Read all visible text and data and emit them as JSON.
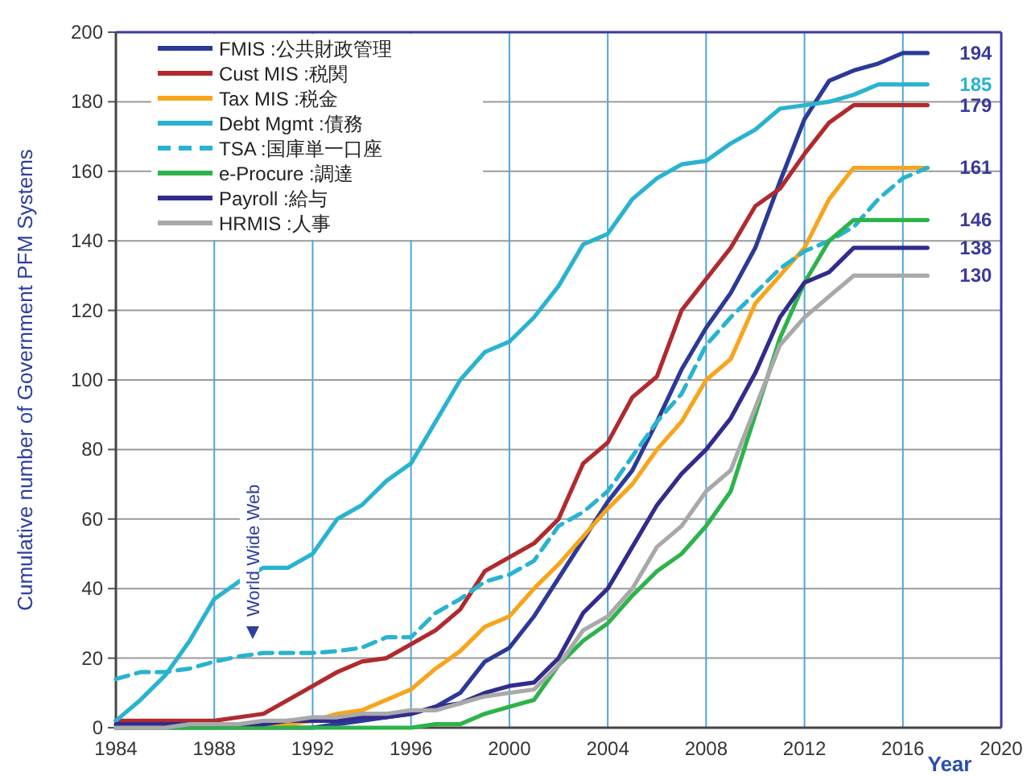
{
  "chart_data": {
    "type": "line",
    "xlabel": "Year",
    "ylabel": "Cumulative number of Government PFM Systems",
    "x": [
      1984,
      1985,
      1986,
      1987,
      1988,
      1989,
      1990,
      1991,
      1992,
      1993,
      1994,
      1995,
      1996,
      1997,
      1998,
      1999,
      2000,
      2001,
      2002,
      2003,
      2004,
      2005,
      2006,
      2007,
      2008,
      2009,
      2010,
      2011,
      2012,
      2013,
      2014,
      2015,
      2016,
      2017
    ],
    "xlim": [
      1984,
      2020
    ],
    "xticks": [
      1984,
      1988,
      1992,
      1996,
      2000,
      2004,
      2008,
      2012,
      2016,
      2020
    ],
    "ylim": [
      0,
      200
    ],
    "yticks": [
      0,
      20,
      40,
      60,
      80,
      100,
      120,
      140,
      160,
      180,
      200
    ],
    "grid": true,
    "legend": "top left",
    "marker": "none",
    "series": [
      {
        "name": "FMIS :公共財政管理",
        "color": "#2b3a97",
        "values": [
          0,
          0,
          0,
          0,
          0,
          0,
          0,
          0,
          0,
          1,
          2,
          3,
          4,
          6,
          10,
          19,
          23,
          32,
          43,
          54,
          65,
          74,
          88,
          103,
          115,
          125,
          138,
          157,
          175,
          186,
          189,
          191,
          194,
          194
        ],
        "value_labels": [
          null,
          null,
          null,
          null,
          null,
          null,
          null,
          null,
          null,
          null,
          null,
          null,
          null,
          null,
          null,
          null,
          null,
          null,
          null,
          null,
          null,
          null,
          null,
          null,
          null,
          null,
          null,
          null,
          null,
          null,
          null,
          null,
          null,
          "194"
        ]
      },
      {
        "name": "Cust MIS :税関",
        "color": "#b02a2e",
        "values": [
          2,
          2,
          2,
          2,
          2,
          3,
          4,
          8,
          12,
          16,
          19,
          20,
          24,
          28,
          34,
          45,
          49,
          53,
          60,
          76,
          82,
          95,
          101,
          120,
          129,
          138,
          150,
          155,
          165,
          174,
          179,
          179,
          179,
          179
        ],
        "value_labels": [
          null,
          null,
          null,
          null,
          null,
          null,
          null,
          null,
          null,
          null,
          null,
          null,
          null,
          null,
          null,
          null,
          null,
          null,
          null,
          null,
          null,
          null,
          null,
          null,
          null,
          null,
          null,
          null,
          null,
          null,
          null,
          null,
          null,
          "179"
        ]
      },
      {
        "name": "Tax MIS :税金",
        "color": "#f7a51c",
        "values": [
          null,
          null,
          null,
          null,
          null,
          0,
          0,
          1,
          2,
          4,
          5,
          8,
          11,
          17,
          22,
          29,
          32,
          40,
          47,
          55,
          63,
          70,
          80,
          88,
          100,
          106,
          122,
          130,
          138,
          152,
          161,
          161,
          161,
          161
        ],
        "value_labels": [
          null,
          null,
          null,
          null,
          null,
          null,
          null,
          null,
          null,
          null,
          null,
          null,
          null,
          null,
          null,
          null,
          null,
          null,
          null,
          null,
          null,
          null,
          null,
          null,
          null,
          null,
          null,
          null,
          null,
          null,
          null,
          null,
          null,
          "161"
        ]
      },
      {
        "name": "Debt Mgmt :債務",
        "color": "#29b3d0",
        "values": [
          2,
          8,
          15,
          25,
          37,
          42,
          46,
          46,
          50,
          60,
          64,
          71,
          76,
          88,
          100,
          108,
          111,
          118,
          127,
          139,
          142,
          152,
          158,
          162,
          163,
          168,
          172,
          178,
          179,
          180,
          182,
          185,
          185,
          185
        ],
        "value_labels": [
          null,
          null,
          null,
          null,
          null,
          null,
          null,
          null,
          null,
          null,
          null,
          null,
          null,
          null,
          null,
          null,
          null,
          null,
          null,
          null,
          null,
          null,
          null,
          null,
          null,
          null,
          null,
          null,
          null,
          null,
          null,
          null,
          null,
          "185"
        ]
      },
      {
        "name": "TSA :国庫単一口座",
        "color": "#29b3d0",
        "line_style": "dashed",
        "values": [
          14,
          16,
          16,
          17,
          19,
          20.5,
          21.5,
          21.5,
          21.5,
          22,
          23,
          26,
          26,
          33,
          37,
          42,
          44,
          48,
          58,
          62,
          68,
          78,
          88,
          96,
          110,
          118,
          125,
          132,
          137,
          140,
          144,
          152,
          158,
          161
        ]
      },
      {
        "name": "e-Procure :調達",
        "color": "#2db34a",
        "values": [
          0,
          0,
          0,
          0,
          0,
          0,
          0,
          0,
          0,
          0,
          0,
          0,
          0,
          1,
          1,
          4,
          6,
          8,
          18,
          25,
          30,
          38,
          45,
          50,
          58,
          68,
          90,
          112,
          128,
          140,
          146,
          146,
          146,
          146
        ],
        "value_labels": [
          null,
          null,
          null,
          null,
          null,
          null,
          null,
          null,
          null,
          null,
          null,
          null,
          null,
          null,
          null,
          null,
          null,
          null,
          null,
          null,
          null,
          null,
          null,
          null,
          null,
          null,
          null,
          null,
          null,
          null,
          null,
          null,
          null,
          "146"
        ]
      },
      {
        "name": "Payroll :給与",
        "color": "#312c8c",
        "values": [
          1,
          1,
          1,
          1,
          1,
          1,
          1,
          2,
          2,
          2,
          3,
          3,
          4,
          6,
          7,
          10,
          12,
          13,
          20,
          33,
          40,
          52,
          64,
          73,
          80,
          89,
          102,
          118,
          128,
          131,
          138,
          138,
          138,
          138
        ],
        "value_labels": [
          null,
          null,
          null,
          null,
          null,
          null,
          null,
          null,
          null,
          null,
          null,
          null,
          null,
          null,
          null,
          null,
          null,
          null,
          null,
          null,
          null,
          null,
          null,
          null,
          null,
          null,
          null,
          null,
          null,
          null,
          null,
          null,
          null,
          "138"
        ]
      },
      {
        "name": "HRMIS :人事",
        "color": "#a9a9a9",
        "values": [
          0,
          0,
          0,
          1,
          1,
          1,
          2,
          2,
          3,
          3,
          4,
          4,
          5,
          5,
          7,
          9,
          10,
          11,
          18,
          28,
          32,
          40,
          52,
          58,
          68,
          74,
          92,
          110,
          118,
          124,
          130,
          130,
          130,
          130
        ],
        "value_labels": [
          null,
          null,
          null,
          null,
          null,
          null,
          null,
          null,
          null,
          null,
          null,
          null,
          null,
          null,
          null,
          null,
          null,
          null,
          null,
          null,
          null,
          null,
          null,
          null,
          null,
          null,
          null,
          null,
          null,
          null,
          null,
          null,
          null,
          "130"
        ]
      }
    ],
    "annotations": [
      "World Wide Web"
    ]
  }
}
